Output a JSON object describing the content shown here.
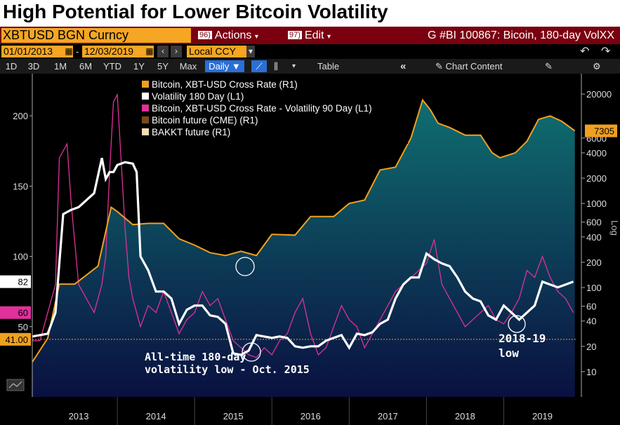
{
  "title": "High Potential for Lower Bitcoin Volatility",
  "toolbar": {
    "ticker": "XBTUSD BGN Curncy",
    "actions_num": "96)",
    "actions_label": "Actions",
    "edit_num": "97)",
    "edit_label": "Edit",
    "graph_title": "G #BI 100867: Bicoin, 180-day VolXX",
    "start_date": "01/01/2013",
    "end_date": "12/03/2019",
    "currency": "Local CCY",
    "periods": [
      "1D",
      "3D",
      "1M",
      "6M",
      "YTD",
      "1Y",
      "5Y",
      "Max"
    ],
    "frequency": "Daily",
    "table_label": "Table",
    "chart_content_label": "Chart Content"
  },
  "colors": {
    "price": "#f0a020",
    "vol180": "#ffffff",
    "vol90": "#e0309a",
    "cme": "#7a4a1c",
    "bakkt": "#f5deb3",
    "area_top": "#0f6e70",
    "area_bottom": "#0a1040"
  },
  "chart_data": {
    "type": "line",
    "legend": [
      {
        "name": "Bitcoin, XBT-USD Cross Rate  (R1)",
        "color": "#f0a020"
      },
      {
        "name": "Volatility 180 Day (L1)",
        "color": "#ffffff"
      },
      {
        "name": "Bitcoin, XBT-USD Cross Rate - Volatility 90 Day (L1)",
        "color": "#e0309a"
      },
      {
        "name": "Bitcoin future (CME) (R1)",
        "color": "#7a4a1c"
      },
      {
        "name": "BAKKT future (R1)",
        "color": "#f5deb3"
      }
    ],
    "x_ticks": [
      "2013",
      "2014",
      "2015",
      "2016",
      "2017",
      "2018",
      "2019"
    ],
    "left_axis": {
      "range": [
        0,
        230
      ],
      "ticks": [
        50,
        100,
        150,
        200
      ]
    },
    "right_axis": {
      "scale": "log",
      "label": "Log",
      "range": [
        5,
        35000
      ],
      "ticks": [
        "10",
        "20",
        "40",
        "60",
        "100",
        "200",
        "400",
        "600",
        "1000",
        "2000",
        "4000",
        "6000",
        "20000"
      ]
    },
    "last_value_labels": {
      "vol180": "82",
      "vol90": "60",
      "threshold": "41.00",
      "price": "7305"
    },
    "threshold_level": 41,
    "series": [
      {
        "name": "Bitcoin, XBT-USD Cross Rate  (R1)",
        "axis": "right",
        "x": [
          2012.9,
          2013.1,
          2013.25,
          2013.45,
          2013.75,
          2013.92,
          2014.0,
          2014.2,
          2014.4,
          2014.6,
          2014.8,
          2015.0,
          2015.2,
          2015.4,
          2015.6,
          2015.8,
          2016.0,
          2016.3,
          2016.5,
          2016.8,
          2017.0,
          2017.2,
          2017.4,
          2017.6,
          2017.8,
          2017.95,
          2018.05,
          2018.15,
          2018.3,
          2018.5,
          2018.7,
          2018.85,
          2018.95,
          2019.15,
          2019.3,
          2019.45,
          2019.6,
          2019.75,
          2019.92
        ],
        "y": [
          13,
          25,
          110,
          110,
          180,
          900,
          800,
          560,
          580,
          580,
          380,
          320,
          260,
          240,
          270,
          240,
          430,
          420,
          700,
          700,
          1000,
          1100,
          2500,
          2700,
          6000,
          17000,
          13000,
          9000,
          8000,
          6500,
          6500,
          4000,
          3500,
          4000,
          5500,
          10000,
          11000,
          9500,
          7305
        ]
      },
      {
        "name": "Volatility 180 Day (L1)",
        "axis": "left",
        "x": [
          2012.9,
          2013.1,
          2013.2,
          2013.3,
          2013.4,
          2013.5,
          2013.6,
          2013.7,
          2013.8,
          2013.85,
          2013.9,
          2013.95,
          2014.0,
          2014.1,
          2014.2,
          2014.25,
          2014.3,
          2014.4,
          2014.5,
          2014.6,
          2014.7,
          2014.8,
          2014.9,
          2015.0,
          2015.1,
          2015.2,
          2015.3,
          2015.4,
          2015.5,
          2015.6,
          2015.7,
          2015.8,
          2015.9,
          2016.0,
          2016.1,
          2016.2,
          2016.3,
          2016.4,
          2016.5,
          2016.6,
          2016.7,
          2016.8,
          2016.9,
          2017.0,
          2017.1,
          2017.2,
          2017.3,
          2017.4,
          2017.5,
          2017.6,
          2017.7,
          2017.8,
          2017.9,
          2018.0,
          2018.1,
          2018.2,
          2018.3,
          2018.4,
          2018.5,
          2018.6,
          2018.7,
          2018.8,
          2018.9,
          2019.0,
          2019.1,
          2019.2,
          2019.3,
          2019.4,
          2019.5,
          2019.6,
          2019.7,
          2019.8,
          2019.9
        ],
        "y": [
          43,
          45,
          60,
          130,
          133,
          135,
          140,
          145,
          170,
          155,
          160,
          160,
          165,
          167,
          166,
          160,
          100,
          90,
          75,
          75,
          70,
          52,
          62,
          65,
          65,
          58,
          57,
          52,
          31,
          30,
          33,
          44,
          43,
          42,
          43,
          42,
          36,
          35,
          36,
          36,
          40,
          42,
          44,
          35,
          45,
          44,
          46,
          52,
          55,
          70,
          80,
          85,
          85,
          102,
          98,
          95,
          93,
          85,
          75,
          70,
          68,
          58,
          55,
          65,
          60,
          55,
          60,
          65,
          82,
          80,
          78,
          80,
          82
        ]
      },
      {
        "name": "Bitcoin, XBT-USD Cross Rate - Volatility 90 Day (L1)",
        "axis": "left",
        "x": [
          2012.9,
          2013.0,
          2013.1,
          2013.2,
          2013.25,
          2013.35,
          2013.4,
          2013.5,
          2013.6,
          2013.7,
          2013.8,
          2013.85,
          2013.9,
          2013.95,
          2014.0,
          2014.1,
          2014.15,
          2014.2,
          2014.3,
          2014.4,
          2014.5,
          2014.6,
          2014.7,
          2014.8,
          2014.9,
          2015.0,
          2015.1,
          2015.2,
          2015.3,
          2015.4,
          2015.5,
          2015.6,
          2015.7,
          2015.8,
          2015.9,
          2016.0,
          2016.1,
          2016.2,
          2016.3,
          2016.4,
          2016.5,
          2016.6,
          2016.7,
          2016.8,
          2016.9,
          2017.0,
          2017.1,
          2017.2,
          2017.3,
          2017.4,
          2017.5,
          2017.6,
          2017.7,
          2017.8,
          2017.9,
          2018.0,
          2018.1,
          2018.2,
          2018.3,
          2018.4,
          2018.5,
          2018.6,
          2018.7,
          2018.8,
          2018.9,
          2019.0,
          2019.1,
          2019.2,
          2019.3,
          2019.4,
          2019.5,
          2019.6,
          2019.7,
          2019.8,
          2019.9
        ],
        "y": [
          40,
          40,
          60,
          80,
          170,
          180,
          140,
          80,
          70,
          60,
          80,
          100,
          160,
          210,
          215,
          120,
          85,
          70,
          50,
          65,
          60,
          75,
          60,
          45,
          55,
          60,
          75,
          65,
          70,
          55,
          40,
          35,
          30,
          28,
          35,
          30,
          40,
          45,
          60,
          70,
          45,
          30,
          35,
          50,
          65,
          55,
          50,
          35,
          45,
          55,
          65,
          75,
          80,
          85,
          90,
          95,
          112,
          80,
          70,
          60,
          50,
          55,
          60,
          65,
          55,
          52,
          60,
          70,
          90,
          85,
          100,
          85,
          75,
          70,
          60
        ]
      }
    ],
    "annotations": [
      {
        "text_line1": "All-time 180-day",
        "text_line2": "volatility low - Oct. 2015"
      },
      {
        "text_line1": "2018-19",
        "text_line2": "low"
      }
    ]
  }
}
